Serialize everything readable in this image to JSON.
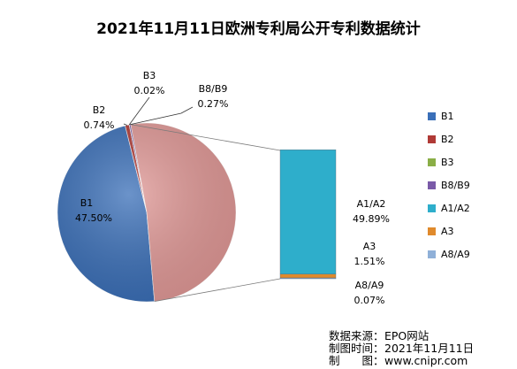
{
  "chart_data": {
    "type": "pie",
    "title": "2021年11月11日欧洲专利局公开专利数据统计",
    "pie_slices": [
      {
        "name": "B1",
        "value_label": "47.50%",
        "value": 47.5,
        "color": "#3a6fb8"
      },
      {
        "name": "B2",
        "value_label": "0.74%",
        "value": 0.74,
        "color": "#b03a36"
      },
      {
        "name": "B3",
        "value_label": "0.02%",
        "value": 0.02,
        "color": "#8aae46"
      },
      {
        "name": "B8/B9",
        "value_label": "0.27%",
        "value": 0.27,
        "color": "#7a5aa8"
      }
    ],
    "other_slice": {
      "color": "#e29a98"
    },
    "bar_segments": [
      {
        "name": "A8/A9",
        "value_label": "0.07%",
        "value": 0.07,
        "color": "#8fb0d8"
      },
      {
        "name": "A3",
        "value_label": "1.51%",
        "value": 1.51,
        "color": "#e08a2c"
      },
      {
        "name": "A1/A2",
        "value_label": "49.89%",
        "value": 49.89,
        "color": "#2eaecb"
      }
    ],
    "legend": {
      "placement": "right",
      "items": [
        {
          "name": "B1",
          "color": "#3a6fb8"
        },
        {
          "name": "B2",
          "color": "#b03a36"
        },
        {
          "name": "B3",
          "color": "#8aae46"
        },
        {
          "name": "B8/B9",
          "color": "#7a5aa8"
        },
        {
          "name": "A1/A2",
          "color": "#2eaecb"
        },
        {
          "name": "A3",
          "color": "#e08a2c"
        },
        {
          "name": "A8/A9",
          "color": "#8fb0d8"
        }
      ]
    }
  },
  "footer": {
    "source_label": "数据来源：",
    "source_value": "EPO网站",
    "date_label": "制图时间：",
    "date_value": "2021年11月11日",
    "maker_label": "制　　图：",
    "maker_value": "www.cnipr.com"
  }
}
